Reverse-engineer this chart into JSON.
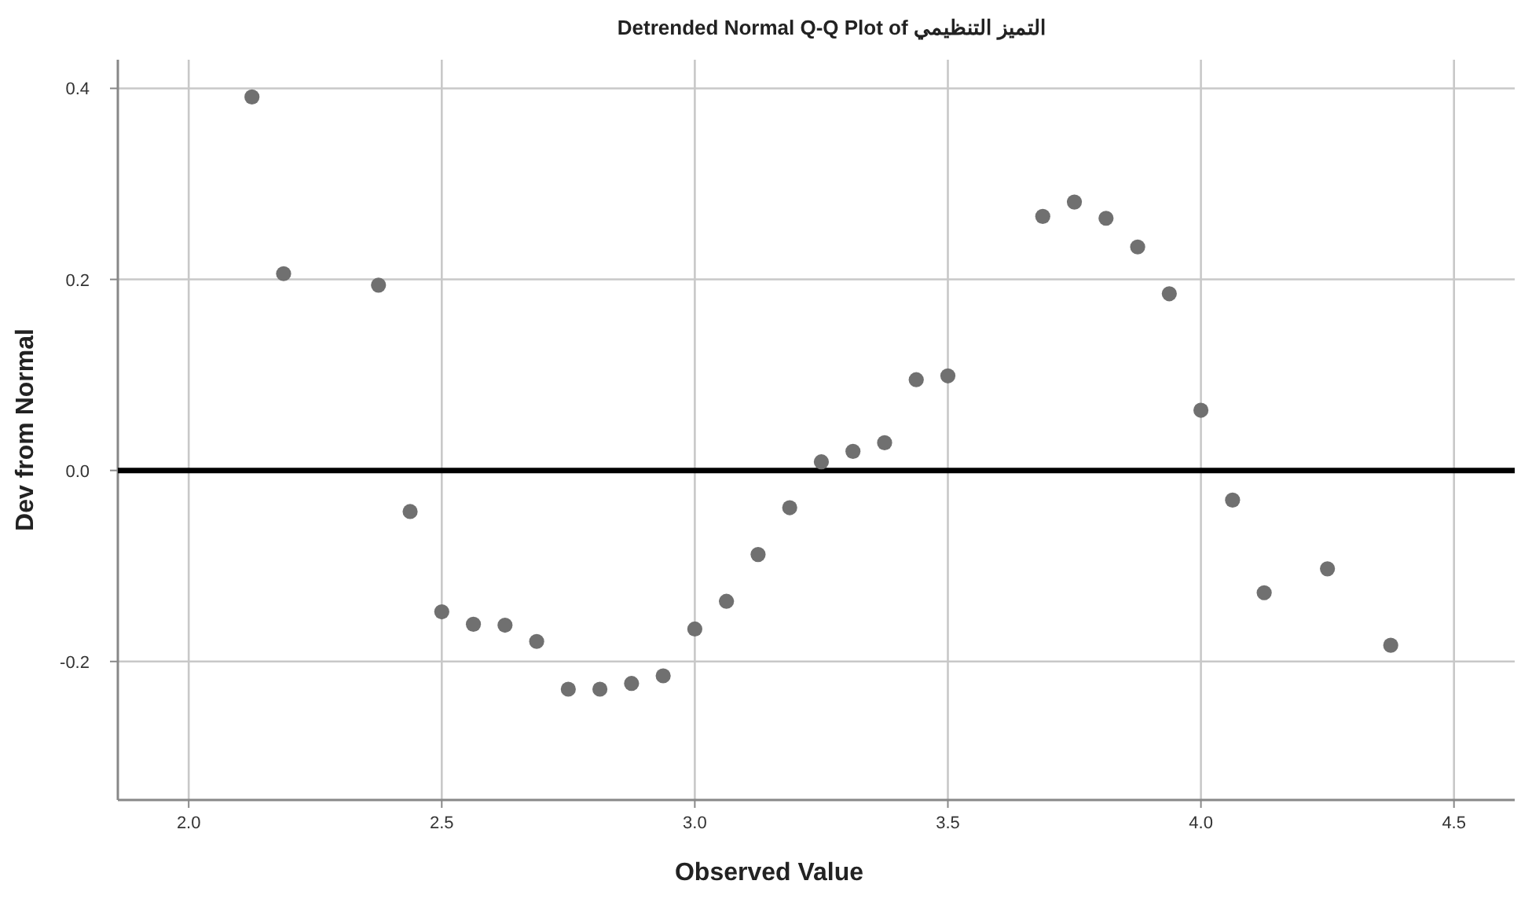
{
  "chart_data": {
    "type": "scatter",
    "title": "Detrended Normal Q-Q Plot of التميز التنظيمي",
    "xlabel": "Observed Value",
    "ylabel": "Dev from Normal",
    "xlim": [
      1.86,
      4.62
    ],
    "ylim": [
      -0.345,
      0.43
    ],
    "xticks": [
      {
        "value": 2,
        "label": "2.0"
      },
      {
        "value": 2.5,
        "label": "2.5"
      },
      {
        "value": 3,
        "label": "3.0"
      },
      {
        "value": 3.5,
        "label": "3.5"
      },
      {
        "value": 4,
        "label": "4.0"
      },
      {
        "value": 4.5,
        "label": "4.5"
      }
    ],
    "yticks": [
      {
        "value": -0.2,
        "label": "-0.2"
      },
      {
        "value": 0,
        "label": "0.0"
      },
      {
        "value": 0.2,
        "label": "0.2"
      },
      {
        "value": 0.4,
        "label": "0.4"
      }
    ],
    "grid": true,
    "marker": "circle",
    "ref_lines": [
      {
        "axis": "y",
        "value": 0,
        "color": "#000000"
      }
    ],
    "series": [
      {
        "color": "#707070",
        "x": [
          2.125,
          2.1875,
          2.375,
          2.4375,
          2.5,
          2.5625,
          2.625,
          2.6875,
          2.75,
          2.8125,
          2.875,
          2.9375,
          3.0,
          3.0625,
          3.125,
          3.1875,
          3.25,
          3.3125,
          3.375,
          3.4375,
          3.5,
          3.6875,
          3.75,
          3.8125,
          3.875,
          3.9375,
          4.0,
          4.0625,
          4.125,
          4.25,
          4.375
        ],
        "values": [
          0.391,
          0.206,
          0.194,
          -0.043,
          -0.148,
          -0.161,
          -0.162,
          -0.179,
          -0.229,
          -0.229,
          -0.223,
          -0.215,
          -0.166,
          -0.137,
          -0.088,
          -0.039,
          0.009,
          0.02,
          0.029,
          0.095,
          0.099,
          0.266,
          0.281,
          0.264,
          0.234,
          0.185,
          0.063,
          -0.031,
          -0.128,
          -0.103,
          -0.183
        ]
      }
    ]
  }
}
